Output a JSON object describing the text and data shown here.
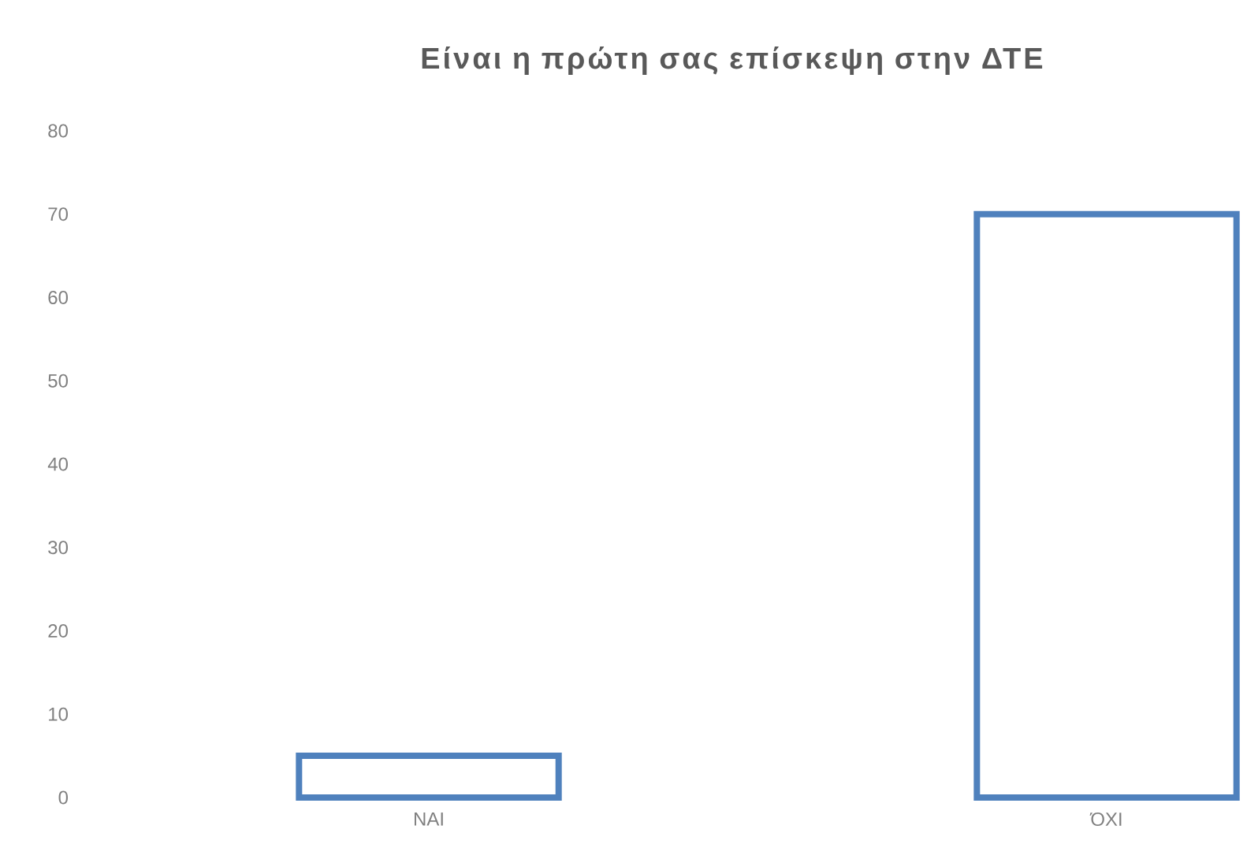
{
  "chart_data": {
    "type": "bar",
    "title": "Είναι η πρώτη σας επίσκεψη στην ΔΤΕ",
    "categories": [
      "ΝΑΙ",
      "ΌΧΙ"
    ],
    "values": [
      5,
      70
    ],
    "color": "#4f81bd",
    "ylim": [
      0,
      80
    ],
    "yticks": [
      0,
      10,
      20,
      30,
      40,
      50,
      60,
      70,
      80
    ],
    "grid": false
  }
}
